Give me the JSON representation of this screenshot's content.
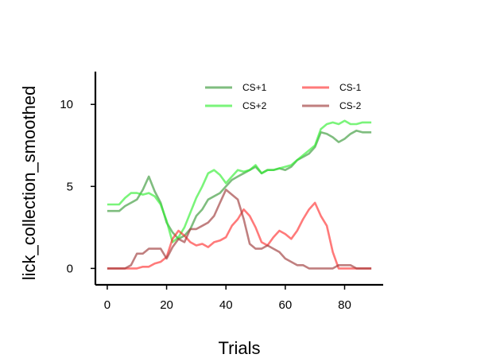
{
  "chart_data": {
    "type": "line",
    "title": "",
    "xlabel": "Trials",
    "ylabel": "lick_collection_smoothed",
    "xlim": [
      -4,
      93
    ],
    "ylim": [
      -1,
      12
    ],
    "xticks": [
      0,
      20,
      40,
      60,
      80
    ],
    "yticks": [
      0,
      5,
      10
    ],
    "grid": false,
    "legend": {
      "placement": "top-right",
      "columns": 2
    },
    "series": [
      {
        "name": "CS+1",
        "color": "#3a9a3a",
        "opacity": 0.65,
        "x": [
          0,
          2,
          4,
          6,
          8,
          10,
          12,
          14,
          16,
          18,
          20,
          22,
          24,
          26,
          28,
          30,
          32,
          34,
          36,
          38,
          40,
          42,
          44,
          46,
          48,
          50,
          52,
          54,
          56,
          58,
          60,
          62,
          64,
          66,
          68,
          70,
          72,
          74,
          76,
          78,
          80,
          82,
          84,
          86,
          88,
          89
        ],
        "y": [
          3.5,
          3.5,
          3.5,
          3.8,
          4.0,
          4.2,
          4.8,
          5.6,
          4.7,
          4.0,
          2.8,
          2.2,
          1.8,
          2.0,
          2.4,
          3.2,
          3.6,
          4.2,
          4.4,
          4.6,
          5.0,
          5.4,
          5.6,
          5.8,
          6.0,
          6.2,
          5.8,
          6.0,
          6.0,
          6.1,
          6.0,
          6.2,
          6.6,
          6.8,
          7.0,
          7.4,
          8.3,
          8.2,
          8.0,
          7.7,
          7.9,
          8.2,
          8.4,
          8.3,
          8.3,
          8.3
        ]
      },
      {
        "name": "CS+2",
        "color": "#33ee33",
        "opacity": 0.65,
        "x": [
          0,
          2,
          4,
          6,
          8,
          10,
          12,
          14,
          16,
          18,
          20,
          22,
          24,
          26,
          28,
          30,
          32,
          34,
          36,
          38,
          40,
          42,
          44,
          46,
          48,
          50,
          52,
          54,
          56,
          58,
          60,
          62,
          64,
          66,
          68,
          70,
          72,
          74,
          76,
          78,
          80,
          82,
          84,
          86,
          88,
          89
        ],
        "y": [
          3.9,
          3.9,
          3.9,
          4.3,
          4.6,
          4.6,
          4.5,
          4.6,
          4.4,
          3.9,
          2.9,
          1.6,
          1.9,
          2.5,
          3.4,
          4.3,
          5.0,
          5.8,
          6.0,
          5.7,
          5.2,
          5.6,
          6.0,
          5.9,
          6.0,
          6.3,
          5.8,
          6.0,
          6.0,
          6.1,
          6.2,
          6.3,
          6.6,
          6.9,
          7.2,
          7.5,
          8.5,
          8.8,
          8.9,
          8.8,
          9.0,
          8.8,
          8.8,
          8.9,
          8.9,
          8.9
        ]
      },
      {
        "name": "CS-1",
        "color": "#ff2222",
        "opacity": 0.6,
        "x": [
          0,
          2,
          4,
          6,
          8,
          10,
          12,
          14,
          16,
          18,
          20,
          22,
          24,
          26,
          28,
          30,
          32,
          34,
          36,
          38,
          40,
          42,
          44,
          46,
          48,
          50,
          52,
          54,
          56,
          58,
          60,
          62,
          64,
          66,
          68,
          70,
          72,
          74,
          76,
          78,
          80,
          82,
          84,
          86,
          88,
          89
        ],
        "y": [
          0,
          0,
          0,
          0,
          0,
          0,
          0.1,
          0.1,
          0.3,
          0.4,
          0.7,
          1.8,
          2.3,
          2.0,
          1.6,
          1.4,
          1.5,
          1.3,
          1.6,
          1.7,
          1.9,
          2.6,
          3.0,
          3.6,
          3.2,
          2.5,
          1.6,
          1.4,
          1.9,
          2.3,
          2.1,
          1.8,
          2.3,
          3.0,
          3.6,
          4.0,
          3.2,
          2.6,
          1.0,
          0,
          0,
          0,
          0,
          0,
          0,
          0
        ]
      },
      {
        "name": "CS-2",
        "color": "#9e3a3a",
        "opacity": 0.65,
        "x": [
          0,
          2,
          4,
          6,
          8,
          10,
          12,
          14,
          16,
          18,
          20,
          22,
          24,
          26,
          28,
          30,
          32,
          34,
          36,
          38,
          40,
          42,
          44,
          46,
          48,
          50,
          52,
          54,
          56,
          58,
          60,
          62,
          64,
          66,
          68,
          70,
          72,
          74,
          76,
          78,
          80,
          82,
          84,
          86,
          88,
          89
        ],
        "y": [
          0,
          0,
          0,
          0,
          0.2,
          0.9,
          0.9,
          1.2,
          1.2,
          1.2,
          0.6,
          1.3,
          1.8,
          1.6,
          2.4,
          2.4,
          2.6,
          2.8,
          3.2,
          4.0,
          4.8,
          4.5,
          4.2,
          3.0,
          1.5,
          1.2,
          1.2,
          1.4,
          1.2,
          1.0,
          0.6,
          0.4,
          0.2,
          0.2,
          0,
          0,
          0,
          0,
          0,
          0.2,
          0.2,
          0.2,
          0,
          0,
          0,
          0
        ]
      }
    ]
  }
}
